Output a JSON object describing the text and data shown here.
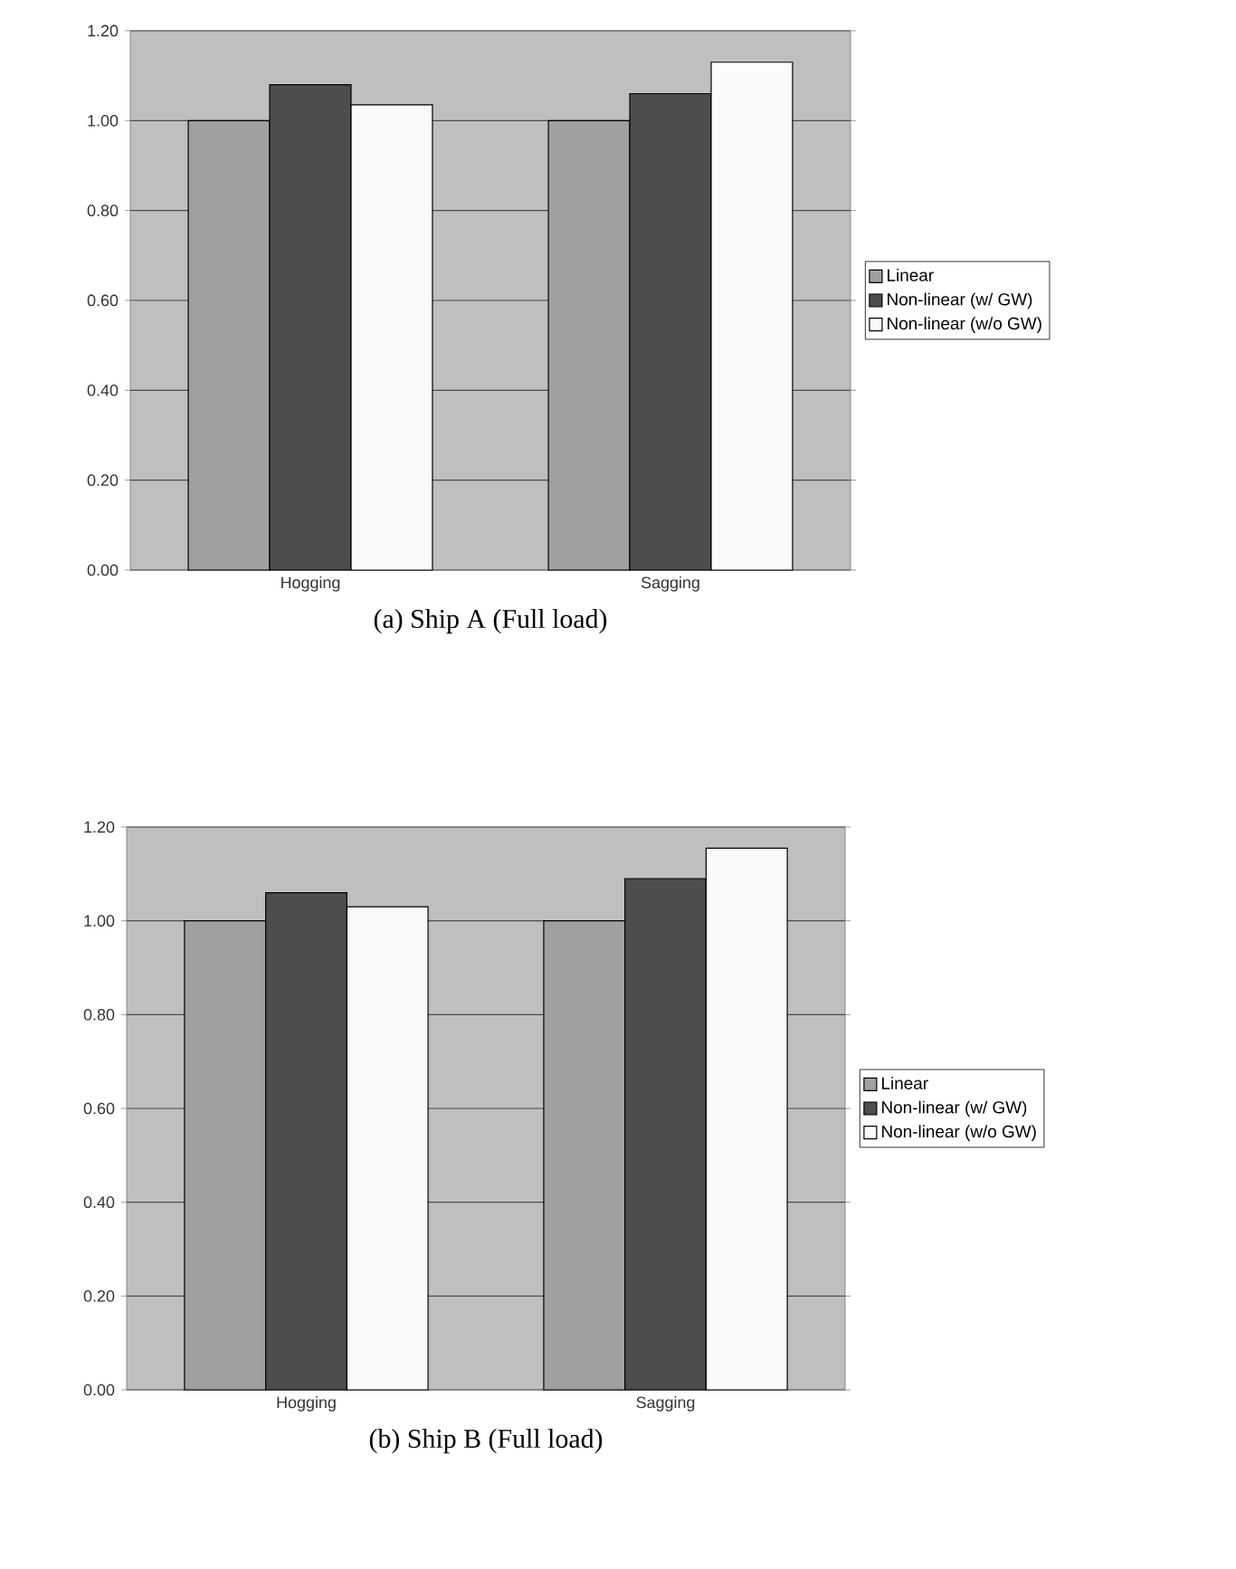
{
  "chart_data": [
    {
      "type": "bar",
      "title": "(a) Ship A (Full load)",
      "categories": [
        "Hogging",
        "Sagging"
      ],
      "series": [
        {
          "name": "Linear",
          "color": "#a0a0a0",
          "values": [
            1.0,
            1.0
          ]
        },
        {
          "name": "Non-linear (w/  GW)",
          "color": "#4d4d4d",
          "values": [
            1.08,
            1.06
          ]
        },
        {
          "name": "Non-linear (w/o GW)",
          "color": "#fafafa",
          "values": [
            1.035,
            1.13
          ]
        }
      ],
      "ylim": [
        0,
        1.2
      ],
      "yticks": [
        {
          "value": 0,
          "label": "0.00"
        },
        {
          "value": 0.2,
          "label": "0.20"
        },
        {
          "value": 0.4,
          "label": "0.40"
        },
        {
          "value": 0.6,
          "label": "0.60"
        },
        {
          "value": 0.8,
          "label": "0.80"
        },
        {
          "value": 1.0,
          "label": "1.00"
        },
        {
          "value": 1.2,
          "label": "1.20"
        }
      ],
      "grid": "y",
      "legend": "right"
    },
    {
      "type": "bar",
      "title": "(b) Ship B (Full load)",
      "categories": [
        "Hogging",
        "Sagging"
      ],
      "series": [
        {
          "name": "Linear",
          "color": "#a0a0a0",
          "values": [
            1.0,
            1.0
          ]
        },
        {
          "name": "Non-linear (w/  GW)",
          "color": "#4d4d4d",
          "values": [
            1.06,
            1.09
          ]
        },
        {
          "name": "Non-linear (w/o GW)",
          "color": "#fafafa",
          "values": [
            1.03,
            1.155
          ]
        }
      ],
      "ylim": [
        0,
        1.2
      ],
      "yticks": [
        {
          "value": 0,
          "label": "0.00"
        },
        {
          "value": 0.2,
          "label": "0.20"
        },
        {
          "value": 0.4,
          "label": "0.40"
        },
        {
          "value": 0.6,
          "label": "0.60"
        },
        {
          "value": 0.8,
          "label": "0.80"
        },
        {
          "value": 1.0,
          "label": "1.00"
        },
        {
          "value": 1.2,
          "label": "1.20"
        }
      ],
      "grid": "y",
      "legend": "right"
    }
  ]
}
